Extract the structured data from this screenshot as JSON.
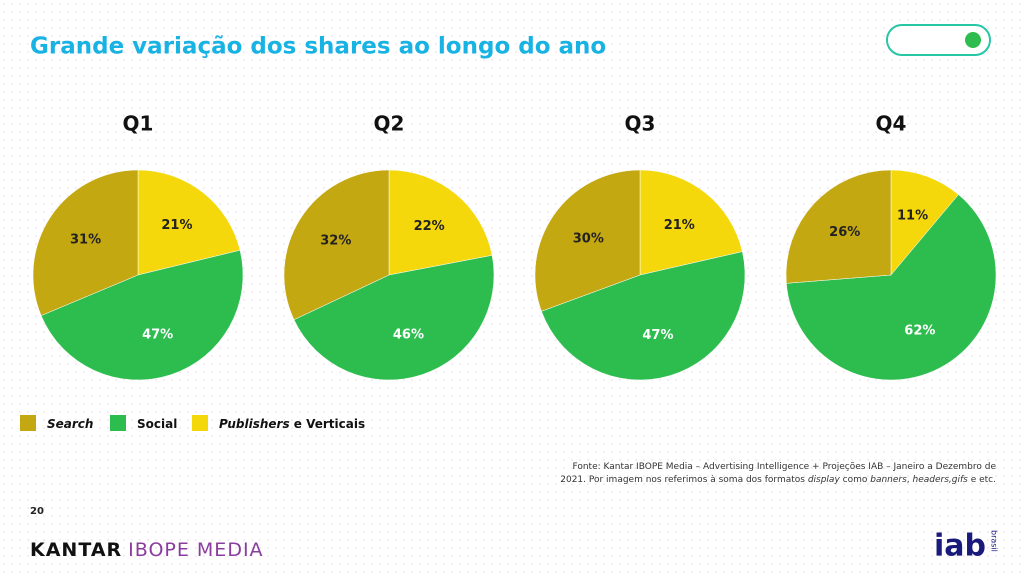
{
  "title": "Grande variação dos shares ao longo do ano",
  "chart_data": [
    {
      "type": "pie",
      "title": "Q1",
      "values": [
        21,
        47,
        31
      ],
      "value_labels": [
        "21%",
        "47%",
        "31%"
      ],
      "colors": [
        "#f5d80c",
        "#2dbd4f",
        "#c4a812"
      ]
    },
    {
      "type": "pie",
      "title": "Q2",
      "values": [
        22,
        46,
        32
      ],
      "value_labels": [
        "22%",
        "46%",
        "32%"
      ],
      "colors": [
        "#f5d80c",
        "#2dbd4f",
        "#c4a812"
      ]
    },
    {
      "type": "pie",
      "title": "Q3",
      "values": [
        21,
        47,
        30
      ],
      "value_labels": [
        "21%",
        "47%",
        "30%"
      ],
      "colors": [
        "#f5d80c",
        "#2dbd4f",
        "#c4a812"
      ]
    },
    {
      "type": "pie",
      "title": "Q4",
      "values": [
        11,
        62,
        26
      ],
      "value_labels": [
        "11%",
        "62%",
        "26%"
      ],
      "colors": [
        "#f5d80c",
        "#2dbd4f",
        "#c4a812"
      ]
    }
  ],
  "legend": [
    {
      "name": "Search",
      "color": "#c4a812"
    },
    {
      "name": "Social",
      "color": "#2dbd4f"
    },
    {
      "name": "Publishers",
      "rest": " e Verticais",
      "color": "#f5d80c"
    }
  ],
  "source": [
    [
      {
        "text": "Fonte: Kantar IBOPE Media – Advertising Intelligence + Projeções IAB – Janeiro a Dezembro de",
        "italic": false
      }
    ],
    [
      {
        "text": "2021. Por imagem nos referimos à soma dos formatos ",
        "italic": false
      },
      {
        "text": "display",
        "italic": true
      },
      {
        "text": " como ",
        "italic": false
      },
      {
        "text": "banners",
        "italic": true
      },
      {
        "text": ", ",
        "italic": false
      },
      {
        "text": "headers,gifs",
        "italic": true
      },
      {
        "text": " e etc.",
        "italic": false
      }
    ]
  ],
  "page_number": "20",
  "footer_logo": {
    "part1": "KANTAR",
    "part2": "IBOPE MEDIA"
  },
  "iab_logo": {
    "main": "iab",
    "sub": "brasil"
  }
}
